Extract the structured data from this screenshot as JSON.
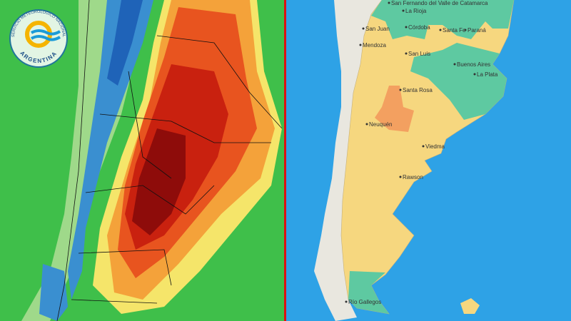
{
  "logo": {
    "top_text": "SERVICIO METEOROLÓGICO NACIONAL",
    "bottom_text": "ARGENTINA"
  },
  "map": {
    "cities": [
      {
        "label": "San Fernando del Valle de Catamarca"
      },
      {
        "label": "La Rioja"
      },
      {
        "label": "Córdoba"
      },
      {
        "label": "San Juan"
      },
      {
        "label": "Santa Fe"
      },
      {
        "label": "Paraná"
      },
      {
        "label": "Mendoza"
      },
      {
        "label": "San Luis"
      },
      {
        "label": "Buenos Aires"
      },
      {
        "label": "La Plata"
      },
      {
        "label": "Santa Rosa"
      },
      {
        "label": "Neuquén"
      },
      {
        "label": "Viedma"
      },
      {
        "label": "Rawson"
      },
      {
        "label": "Río Gallegos"
      }
    ]
  }
}
